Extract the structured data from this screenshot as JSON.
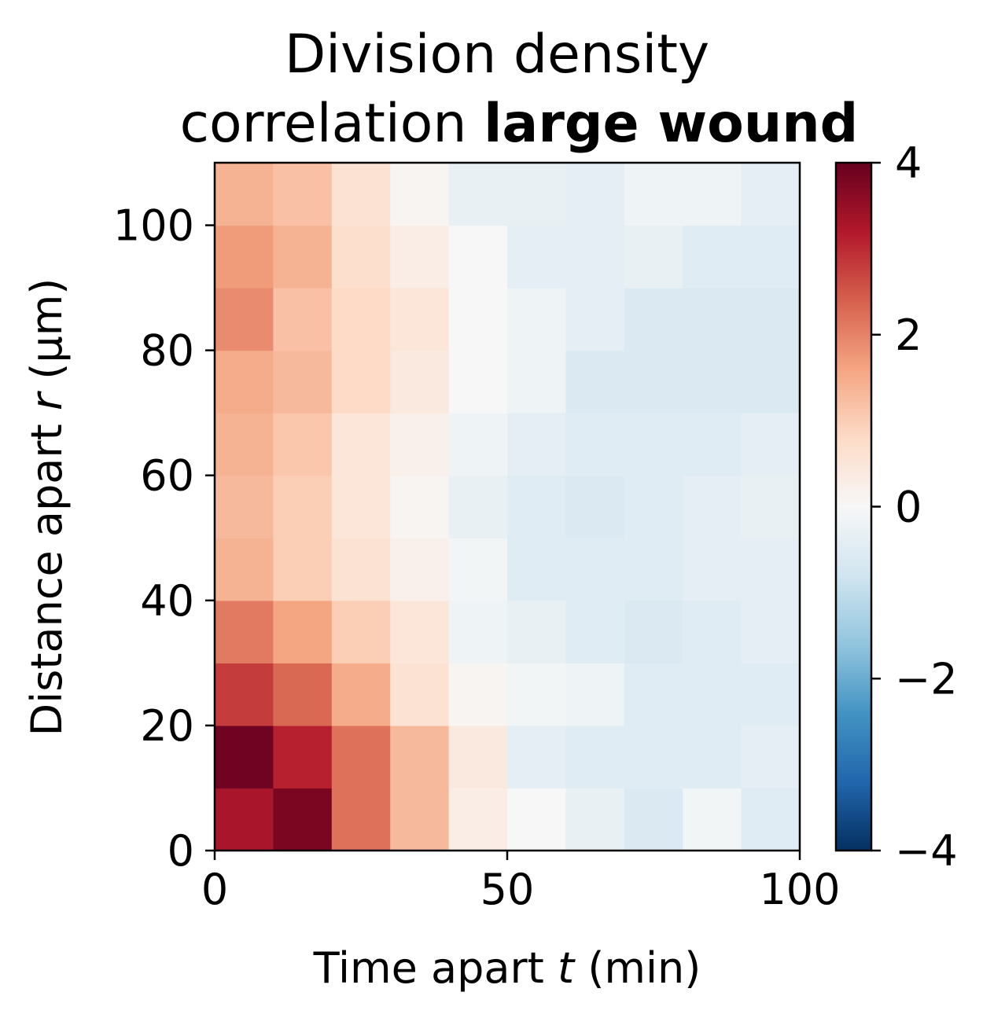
{
  "chart_data": {
    "type": "heatmap",
    "title": {
      "line1": "Division density",
      "line2_normal": "correlation ",
      "line2_bold": "large wound"
    },
    "xlabel": {
      "prefix": "Time apart ",
      "symbol": "t",
      "suffix": " (min)"
    },
    "ylabel": {
      "prefix": "Distance apart ",
      "symbol": "r",
      "suffix": " (μm)"
    },
    "xlim": [
      0,
      100
    ],
    "ylim": [
      0,
      110
    ],
    "x_ticks": [
      0,
      50,
      100
    ],
    "y_ticks": [
      0,
      20,
      40,
      60,
      80,
      100
    ],
    "x_bin_width": 10,
    "y_bin_width": 10,
    "colorbar": {
      "range": [
        -4,
        4
      ],
      "ticks": [
        4,
        2,
        0,
        -2,
        -4
      ],
      "tick_labels": [
        "4",
        "2",
        "0",
        "−2",
        "−4"
      ],
      "colormap": "RdBu_r",
      "colors": [
        "#053061",
        "#2166ac",
        "#4393c3",
        "#92c5de",
        "#d1e5f0",
        "#f7f7f7",
        "#fddbc7",
        "#f4a582",
        "#d6604d",
        "#b2182b",
        "#67001f"
      ]
    },
    "values": [
      [
        3.3,
        3.8,
        2.2,
        1.3,
        0.3,
        0.0,
        -0.3,
        -0.6,
        -0.1,
        -0.5
      ],
      [
        3.9,
        3.1,
        2.2,
        1.3,
        0.4,
        -0.4,
        -0.5,
        -0.5,
        -0.5,
        -0.4
      ],
      [
        2.8,
        2.3,
        1.5,
        0.6,
        0.1,
        -0.1,
        -0.2,
        -0.5,
        -0.5,
        -0.5
      ],
      [
        2.1,
        1.6,
        1.0,
        0.5,
        -0.2,
        -0.3,
        -0.5,
        -0.6,
        -0.5,
        -0.4
      ],
      [
        1.4,
        1.0,
        0.6,
        0.2,
        -0.1,
        -0.5,
        -0.5,
        -0.5,
        -0.4,
        -0.4
      ],
      [
        1.3,
        1.0,
        0.5,
        0.1,
        -0.3,
        -0.5,
        -0.6,
        -0.5,
        -0.4,
        -0.3
      ],
      [
        1.4,
        1.1,
        0.5,
        0.2,
        -0.2,
        -0.4,
        -0.5,
        -0.5,
        -0.5,
        -0.4
      ],
      [
        1.5,
        1.3,
        0.8,
        0.4,
        0.0,
        -0.2,
        -0.6,
        -0.6,
        -0.6,
        -0.6
      ],
      [
        1.9,
        1.2,
        0.8,
        0.5,
        0.0,
        -0.2,
        -0.4,
        -0.6,
        -0.6,
        -0.6
      ],
      [
        1.7,
        1.4,
        0.7,
        0.3,
        0.0,
        -0.4,
        -0.4,
        -0.3,
        -0.5,
        -0.5
      ],
      [
        1.4,
        1.2,
        0.6,
        0.1,
        -0.3,
        -0.3,
        -0.4,
        -0.2,
        -0.2,
        -0.4
      ]
    ]
  }
}
